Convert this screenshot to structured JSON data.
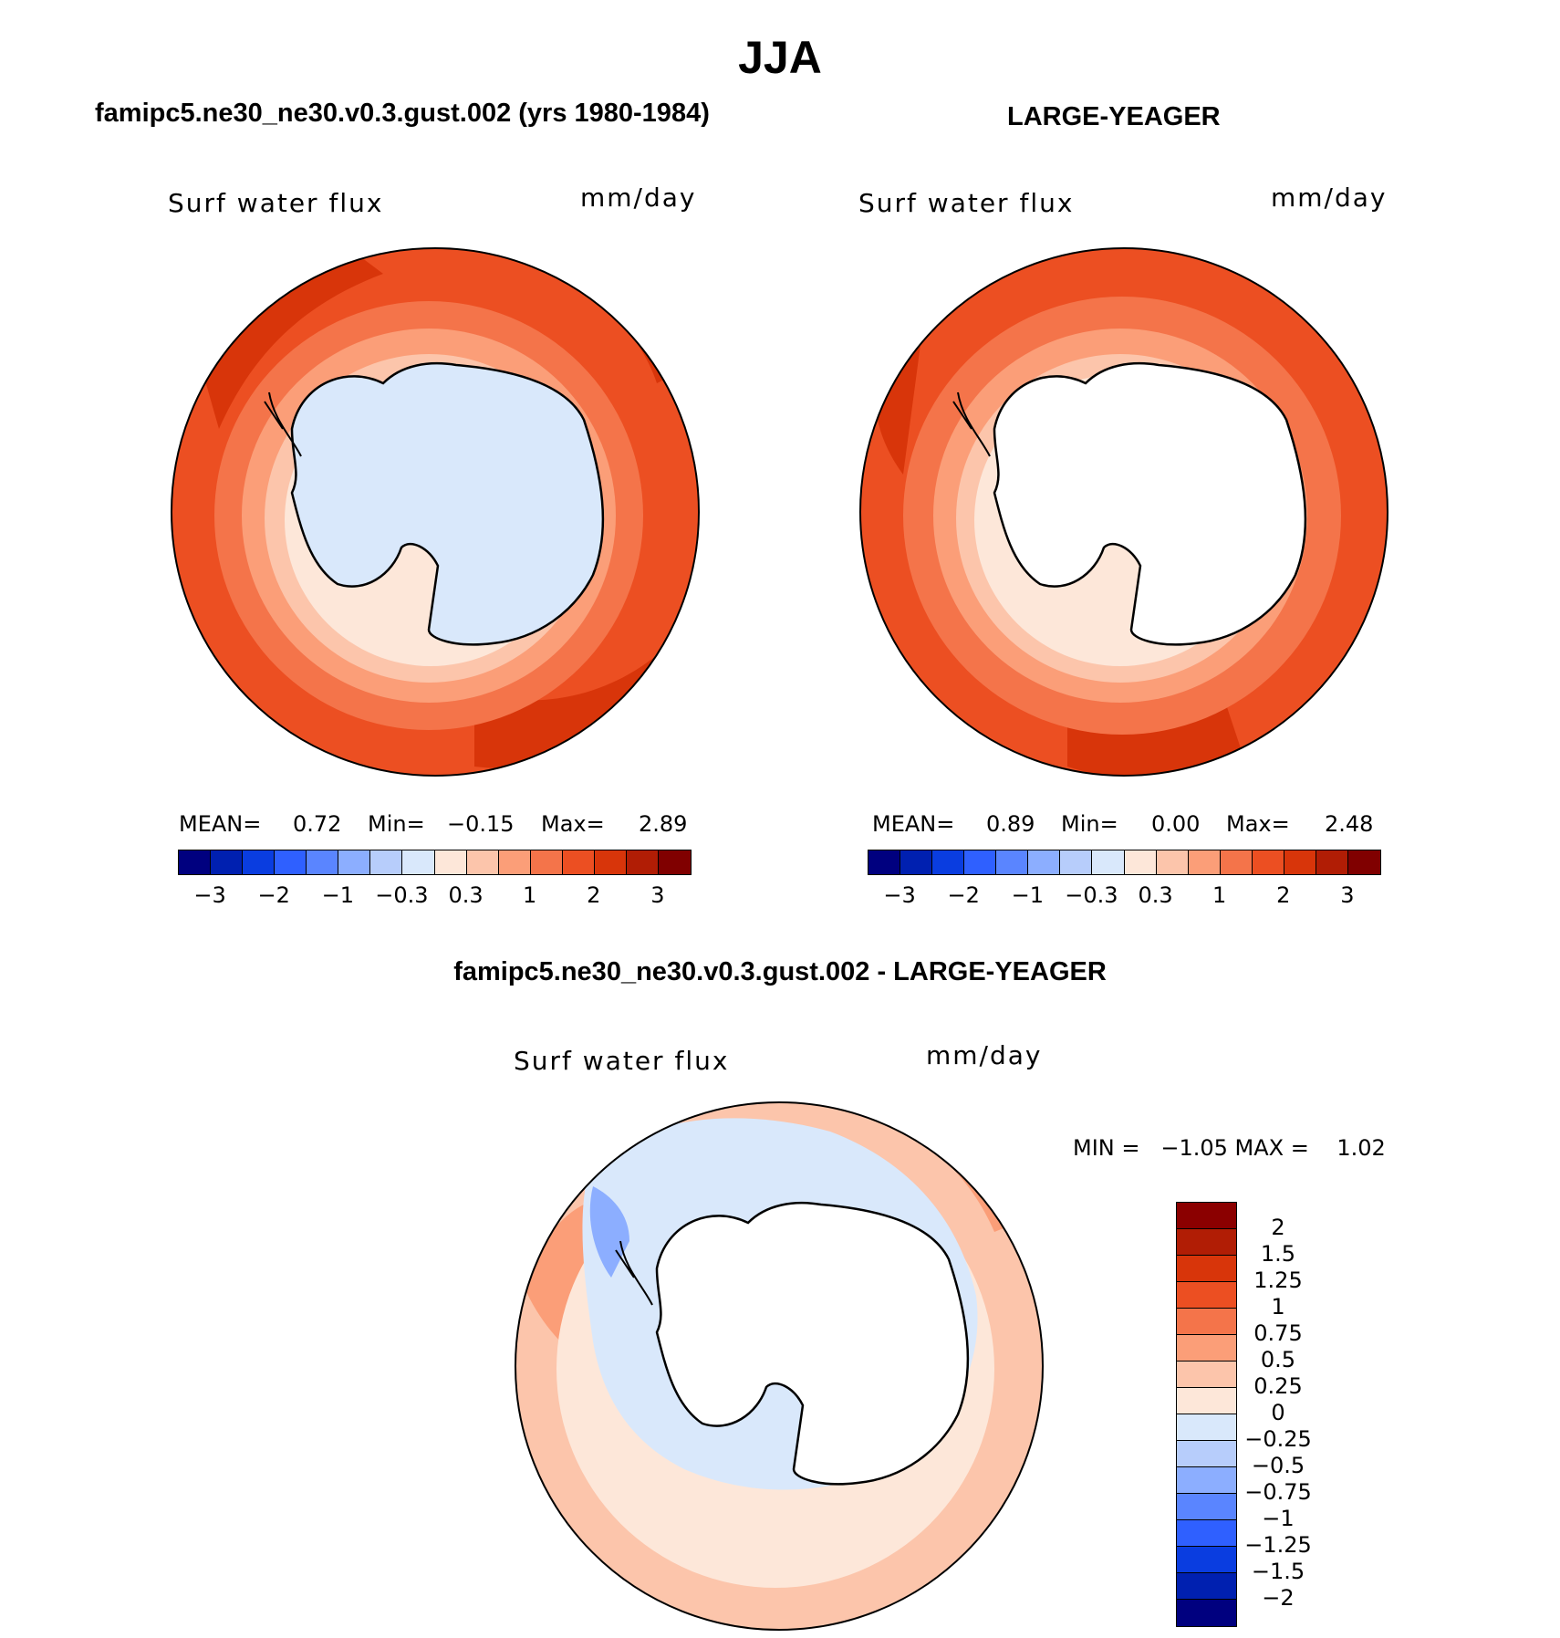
{
  "main_title": "JJA",
  "panels": [
    {
      "title": "famipc5.ne30_ne30.v0.3.gust.002 (yrs 1980-1984)",
      "variable": "Surf  water  flux",
      "units": "mm/day",
      "stats": {
        "mean_label": "MEAN=",
        "mean": "0.72",
        "min_label": "Min=",
        "min": "−0.15",
        "max_label": "Max=",
        "max": "2.89"
      }
    },
    {
      "title": "LARGE-YEAGER",
      "variable": "Surf  water  flux",
      "units": "mm/day",
      "stats": {
        "mean_label": "MEAN=",
        "mean": "0.89",
        "min_label": "Min=",
        "min": "0.00",
        "max_label": "Max=",
        "max": "2.48"
      }
    }
  ],
  "diff_panel": {
    "title": "famipc5.ne30_ne30.v0.3.gust.002 - LARGE-YEAGER",
    "variable": "Surf  water  flux",
    "units": "mm/day",
    "minmax_text": "MIN =   −1.05 MAX =    1.02"
  },
  "chart_data": [
    {
      "type": "heatmap",
      "projection": "south-polar-stereographic",
      "title": "famipc5.ne30_ne30.v0.3.gust.002 (yrs 1980-1984)",
      "variable": "Surf water flux",
      "units": "mm/day",
      "mean": 0.72,
      "min": -0.15,
      "max": 2.89,
      "colorbar_ticks": [
        "−3",
        "−2",
        "−1",
        "−0.3",
        "0.3",
        "1",
        "2",
        "3"
      ],
      "colorbar_colors": [
        "#00007f",
        "#0020b0",
        "#0a3de0",
        "#2f60ff",
        "#5a85ff",
        "#8caeff",
        "#b7cdfb",
        "#d9e8fb",
        "#fde7d9",
        "#fcc5ab",
        "#fb9e78",
        "#f4744a",
        "#ec4f22",
        "#d8350a",
        "#b11d05",
        "#800000"
      ]
    },
    {
      "type": "heatmap",
      "projection": "south-polar-stereographic",
      "title": "LARGE-YEAGER",
      "variable": "Surf water flux",
      "units": "mm/day",
      "mean": 0.89,
      "min": 0.0,
      "max": 2.48,
      "colorbar_ticks": [
        "−3",
        "−2",
        "−1",
        "−0.3",
        "0.3",
        "1",
        "2",
        "3"
      ],
      "colorbar_colors": [
        "#00007f",
        "#0020b0",
        "#0a3de0",
        "#2f60ff",
        "#5a85ff",
        "#8caeff",
        "#b7cdfb",
        "#d9e8fb",
        "#fde7d9",
        "#fcc5ab",
        "#fb9e78",
        "#f4744a",
        "#ec4f22",
        "#d8350a",
        "#b11d05",
        "#800000"
      ]
    },
    {
      "type": "heatmap",
      "projection": "south-polar-stereographic",
      "title": "famipc5.ne30_ne30.v0.3.gust.002 - LARGE-YEAGER",
      "variable": "Surf water flux",
      "units": "mm/day",
      "min": -1.05,
      "max": 1.02,
      "colorbar_ticks": [
        "2",
        "1.5",
        "1.25",
        "1",
        "0.75",
        "0.5",
        "0.25",
        "0",
        "−0.25",
        "−0.5",
        "−0.75",
        "−1",
        "−1.25",
        "−1.5",
        "−2"
      ],
      "colorbar_colors": [
        "#8b0000",
        "#b11d05",
        "#d8350a",
        "#ec4f22",
        "#f4744a",
        "#fb9e78",
        "#fcc5ab",
        "#fde7d9",
        "#d9e8fb",
        "#b7cdfb",
        "#8caeff",
        "#5a85ff",
        "#2f60ff",
        "#0a3de0",
        "#0020b0",
        "#00007f"
      ]
    }
  ]
}
